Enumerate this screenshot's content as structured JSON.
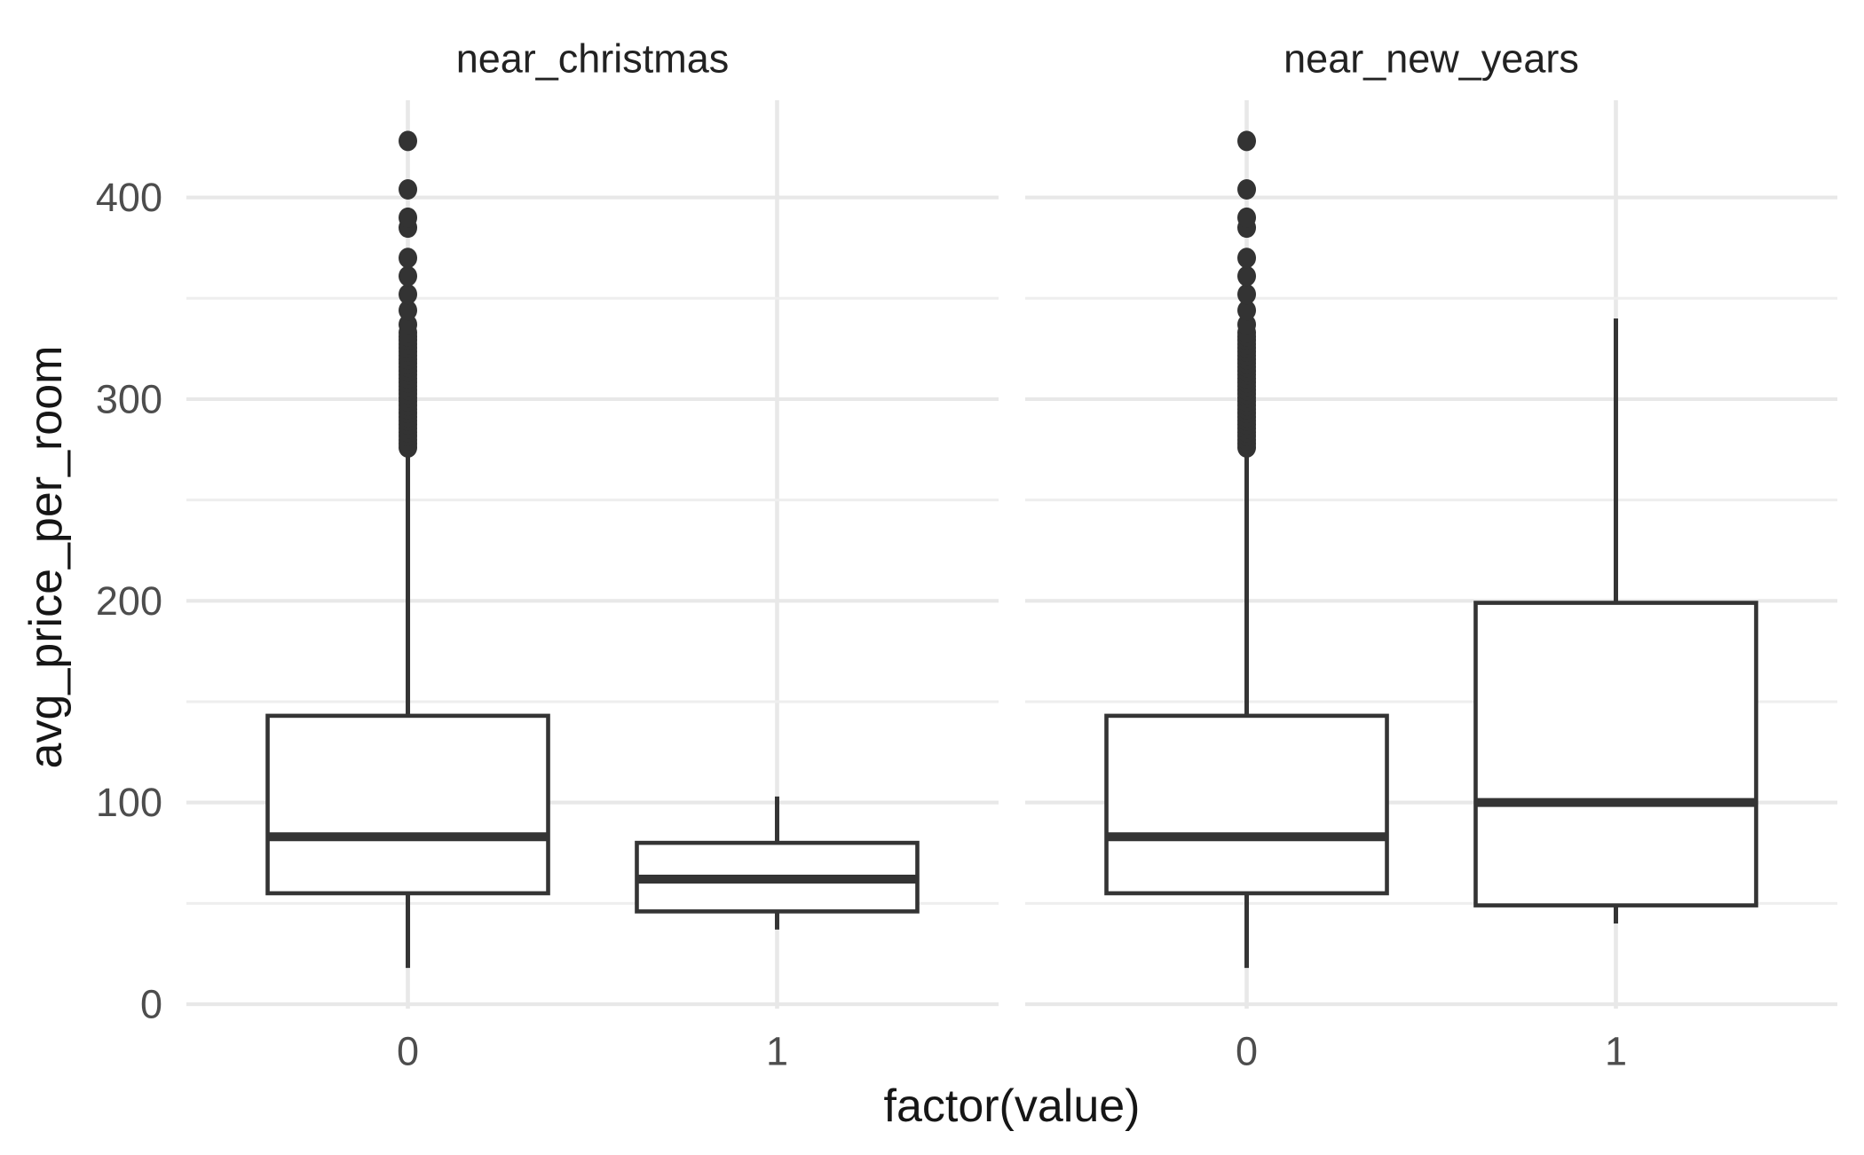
{
  "chart_data": {
    "type": "boxplot",
    "title": "",
    "xlabel": "factor(value)",
    "ylabel": "avg_price_per_room",
    "x_categories": [
      "0",
      "1"
    ],
    "y_major_ticks": [
      0,
      100,
      200,
      300,
      400
    ],
    "y_minor_gridlines": [
      50,
      150,
      250,
      350
    ],
    "ylim": [
      -2,
      448
    ],
    "grid": "horizontal major+minor and vertical category gridlines, light gray, no axis lines, no tick marks (theme_minimal style)",
    "legend_position": "none",
    "colors": {
      "background": "#ffffff",
      "gridline_major": "#e8e8e8",
      "gridline_minor": "#eeeeee",
      "box_stroke": "#343434",
      "box_fill": "#ffffff",
      "outlier_fill": "#333333",
      "tick_text": "#4d4d4d",
      "title_text": "#161616",
      "facet_title_text": "#222222"
    },
    "facets": [
      {
        "label": "near_christmas",
        "boxes": [
          {
            "category": "0",
            "whisker_low": 18,
            "q1": 55,
            "median": 83,
            "q3": 143,
            "whisker_high": 272,
            "outliers_dense_min": 276,
            "outliers_dense_max": 333,
            "outliers_dense_step": 1.9,
            "outliers": [
              337,
              344,
              352,
              361,
              370,
              385,
              390,
              404,
              428
            ]
          },
          {
            "category": "1",
            "whisker_low": 37,
            "q1": 46,
            "median": 62,
            "q3": 80,
            "whisker_high": 103,
            "outliers_dense_min": null,
            "outliers_dense_max": null,
            "outliers_dense_step": null,
            "outliers": []
          }
        ]
      },
      {
        "label": "near_new_years",
        "boxes": [
          {
            "category": "0",
            "whisker_low": 18,
            "q1": 55,
            "median": 83,
            "q3": 143,
            "whisker_high": 272,
            "outliers_dense_min": 276,
            "outliers_dense_max": 333,
            "outliers_dense_step": 1.9,
            "outliers": [
              337,
              344,
              352,
              361,
              370,
              385,
              390,
              404,
              428
            ]
          },
          {
            "category": "1",
            "whisker_low": 40,
            "q1": 49,
            "median": 100,
            "q3": 199,
            "whisker_high": 340,
            "outliers_dense_min": null,
            "outliers_dense_max": null,
            "outliers_dense_step": null,
            "outliers": []
          }
        ]
      }
    ]
  }
}
